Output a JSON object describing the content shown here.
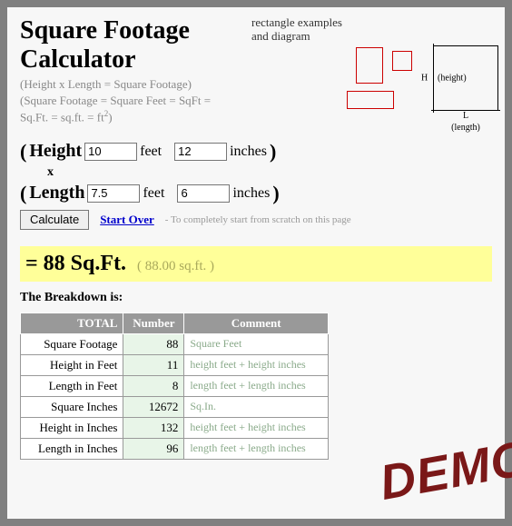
{
  "title": "Square Footage Calculator",
  "sub1": "(Height x Length = Square Footage)",
  "sub2": "(Square Footage = Square Feet = SqFt =",
  "sub3_a": "Sq.Ft. = sq.ft. = ft",
  "sub3_b": ")",
  "diagram": {
    "caption_line1": "rectangle examples",
    "caption_line2": "and diagram",
    "H": "H",
    "L": "L",
    "height_lbl": "(height)",
    "length_lbl": "(length)",
    "rect_border_color": "#cc0000"
  },
  "inputs": {
    "height_label": "Height",
    "length_label": "Length",
    "multiply": "x",
    "feet_unit": "feet",
    "inches_unit": "inches",
    "height_feet": "10",
    "height_inches": "12",
    "length_feet": "7.5",
    "length_inches": "6"
  },
  "controls": {
    "calculate": "Calculate",
    "start_over": "Start Over",
    "hint": "- To completely start from scratch on this page"
  },
  "result": {
    "main": "= 88 Sq.Ft.",
    "detail": "( 88.00 sq.ft. )",
    "bg_color": "#ffff99"
  },
  "breakdown": {
    "heading": "The Breakdown is:",
    "headers": [
      "TOTAL",
      "Number",
      "Comment"
    ],
    "rows": [
      {
        "label": "Square Footage",
        "number": "88",
        "comment": "Square Feet"
      },
      {
        "label": "Height in Feet",
        "number": "11",
        "comment": "height feet + height inches"
      },
      {
        "label": "Length in Feet",
        "number": "8",
        "comment": "length feet + length inches"
      },
      {
        "label": "Square Inches",
        "number": "12672",
        "comment": "Sq.In."
      },
      {
        "label": "Height in Inches",
        "number": "132",
        "comment": "height feet + height inches"
      },
      {
        "label": "Length in Inches",
        "number": "96",
        "comment": "length feet + length inches"
      }
    ]
  },
  "watermark": "DEMO",
  "colors": {
    "page_bg": "#f7f7f7",
    "outer_bg": "#808080",
    "header_bg": "#999999",
    "num_bg": "#e8f5e8",
    "comment_color": "#8aaa8a",
    "link_color": "#0000cc",
    "demo_color": "#7a1818"
  }
}
